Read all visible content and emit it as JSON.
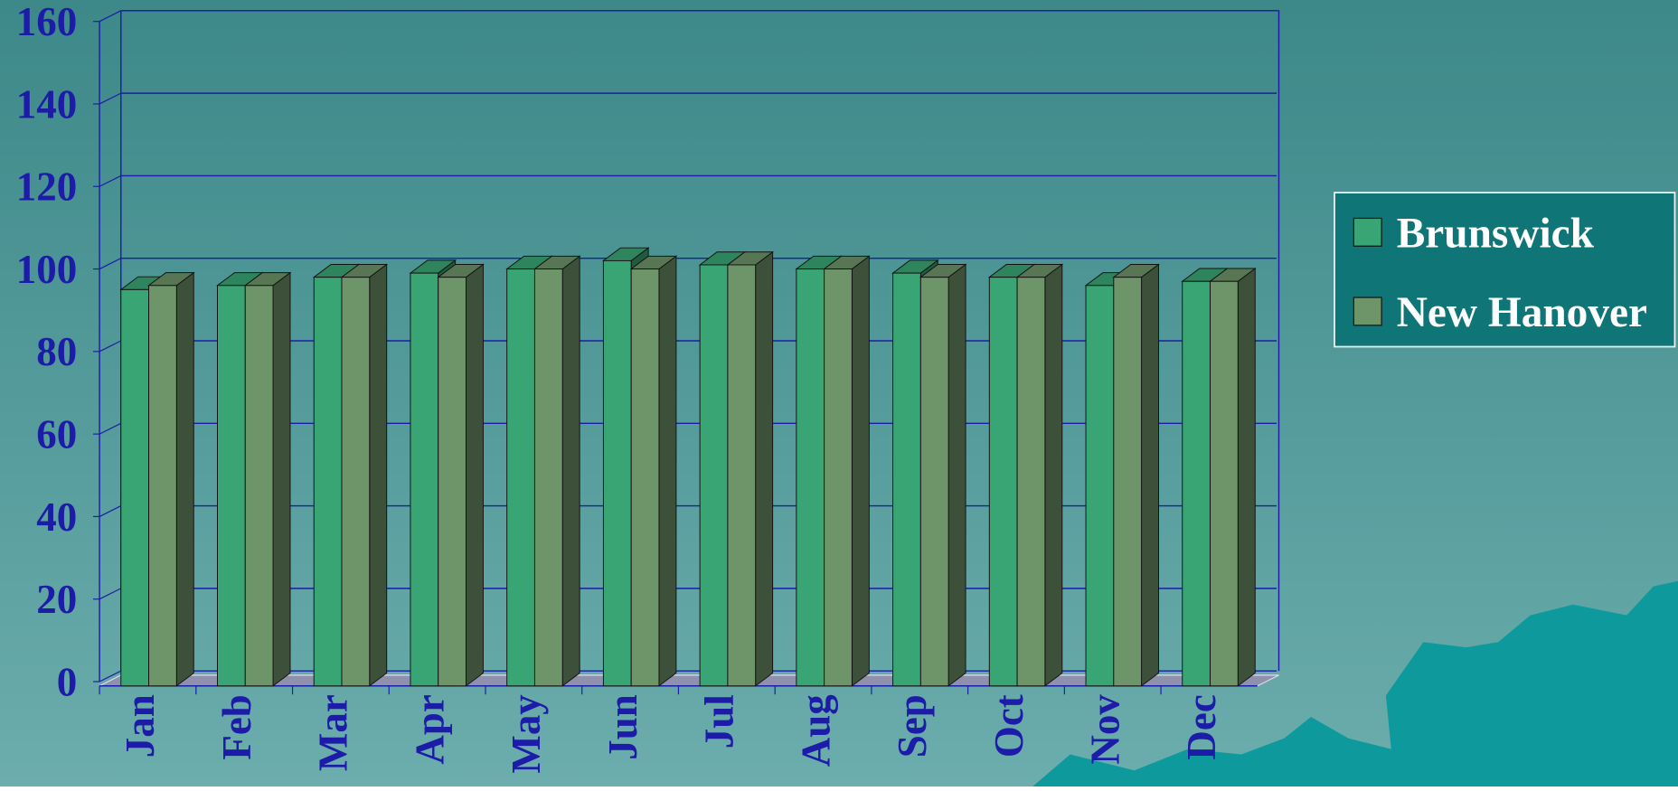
{
  "chart_data": {
    "type": "bar3d",
    "categories": [
      "Jan",
      "Feb",
      "Mar",
      "Apr",
      "May",
      "Jun",
      "Jul",
      "Aug",
      "Sep",
      "Oct",
      "Nov",
      "Dec"
    ],
    "series": [
      {
        "name": "Brunswick",
        "color": "#3aa574",
        "values": [
          95,
          96,
          98,
          99,
          100,
          102,
          101,
          100,
          99,
          98,
          96,
          97
        ]
      },
      {
        "name": "New Hanover",
        "color": "#6e9469",
        "values": [
          96,
          96,
          98,
          98,
          100,
          100,
          101,
          100,
          98,
          98,
          98,
          97
        ]
      }
    ],
    "ylim": [
      0,
      160
    ],
    "yticks": [
      0,
      20,
      40,
      60,
      80,
      100,
      120,
      140,
      160
    ],
    "grid": true,
    "legend": "right"
  }
}
